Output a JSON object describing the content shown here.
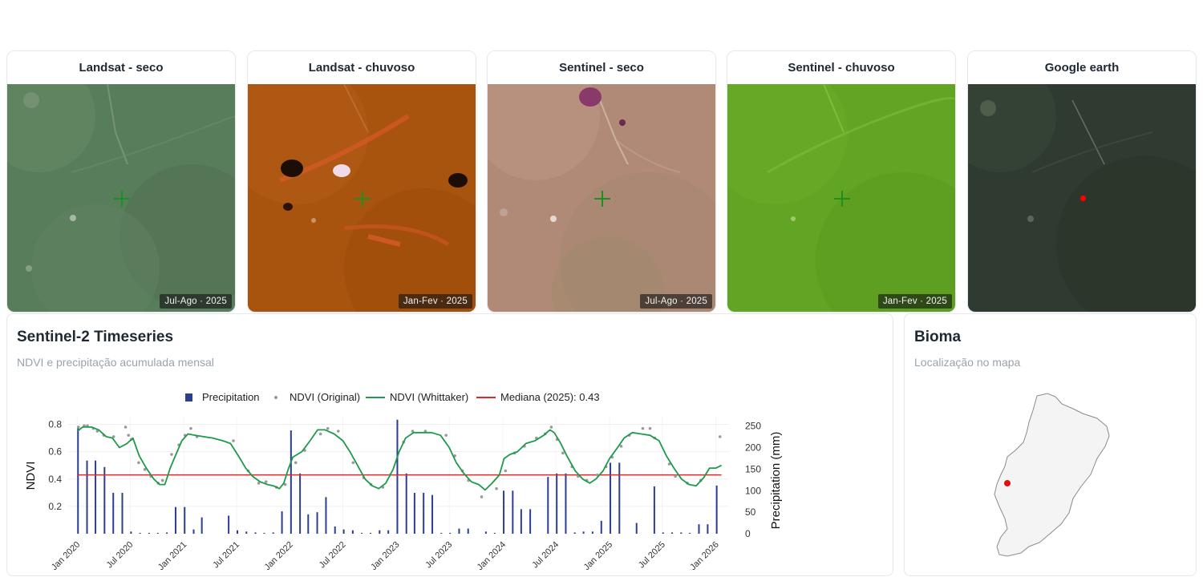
{
  "tiles": [
    {
      "title": "Landsat - seco",
      "badge": "Jul-Ago · 2025",
      "base": "#587d5a",
      "marker": "cross"
    },
    {
      "title": "Landsat - chuvoso",
      "badge": "Jan-Fev · 2025",
      "base": "#a8530e",
      "marker": "cross"
    },
    {
      "title": "Sentinel - seco",
      "badge": "Jul-Ago · 2025",
      "base": "#b08a76",
      "marker": "cross"
    },
    {
      "title": "Sentinel - chuvoso",
      "badge": "Jan-Fev · 2025",
      "base": "#62a424",
      "marker": "cross"
    },
    {
      "title": "Google earth",
      "badge": "",
      "base": "#2f3a30",
      "marker": "dot"
    }
  ],
  "timeseries": {
    "title": "Sentinel-2 Timeseries",
    "subtitle": "NDVI e precipitação acumulada mensal"
  },
  "bioma": {
    "title": "Bioma",
    "subtitle": "Localização no mapa"
  },
  "colors": {
    "precip": "#2c3e8f",
    "ndvi_original": "#9a9a9a",
    "ndvi_whittaker": "#1e9a4a",
    "median": "#e02626",
    "marker_cross": "#1f8f1f",
    "marker_dot": "#ff0000"
  },
  "chart_data": {
    "type": "line",
    "legend": [
      "Precipitation",
      "NDVI (Original)",
      "NDVI (Whittaker)",
      "Mediana (2025): 0.43"
    ],
    "legend_position": "top",
    "ylabel": "NDVI",
    "y2label": "Precipitation (mm)",
    "ylim": [
      0.0,
      0.85
    ],
    "y2lim": [
      0,
      270
    ],
    "yticks": [
      0.2,
      0.4,
      0.6,
      0.8
    ],
    "y2ticks": [
      0,
      50,
      100,
      150,
      200,
      250
    ],
    "xticks": [
      "Jan 2020",
      "Jul 2020",
      "Jan 2021",
      "Jul 2021",
      "Jan 2022",
      "Jul 2022",
      "Jan 2023",
      "Jul 2023",
      "Jan 2024",
      "Jul 2024",
      "Jan 2025",
      "Jul 2025",
      "Jan 2026"
    ],
    "median": 0.43,
    "whittaker": {
      "x": [
        "2020-01-01",
        "2020-01-20",
        "2020-02-20",
        "2020-03-15",
        "2020-04-10",
        "2020-05-01",
        "2020-05-25",
        "2020-06-20",
        "2020-07-10",
        "2020-08-01",
        "2020-08-25",
        "2020-09-20",
        "2020-10-10",
        "2020-10-28",
        "2020-11-15",
        "2020-12-05",
        "2020-12-25",
        "2021-01-15",
        "2021-02-10",
        "2021-03-10",
        "2021-04-10",
        "2021-05-15",
        "2021-06-10",
        "2021-07-10",
        "2021-08-01",
        "2021-08-25",
        "2021-09-20",
        "2021-10-15",
        "2021-11-05",
        "2021-11-25",
        "2021-12-10",
        "2021-12-25",
        "2022-01-10",
        "2022-02-10",
        "2022-03-10",
        "2022-04-05",
        "2022-05-01",
        "2022-06-01",
        "2022-07-01",
        "2022-07-25",
        "2022-08-20",
        "2022-09-15",
        "2022-10-10",
        "2022-11-01",
        "2022-11-25",
        "2022-12-20",
        "2023-01-10",
        "2023-02-01",
        "2023-03-01",
        "2023-04-01",
        "2023-05-01",
        "2023-06-01",
        "2023-07-01",
        "2023-07-25",
        "2023-08-20",
        "2023-09-15",
        "2023-10-10",
        "2023-11-01",
        "2023-11-25",
        "2023-12-20",
        "2024-01-05",
        "2024-01-25",
        "2024-02-20",
        "2024-03-20",
        "2024-04-20",
        "2024-05-20",
        "2024-06-10",
        "2024-06-25",
        "2024-07-15",
        "2024-08-10",
        "2024-09-05",
        "2024-10-01",
        "2024-10-25",
        "2024-11-15",
        "2024-12-10",
        "2025-01-01",
        "2025-01-25",
        "2025-02-20",
        "2025-03-20",
        "2025-04-20",
        "2025-05-20",
        "2025-06-20",
        "2025-07-15",
        "2025-08-10",
        "2025-09-05",
        "2025-10-01",
        "2025-10-25",
        "2025-11-20",
        "2025-12-10",
        "2026-01-01",
        "2026-01-20"
      ],
      "y": [
        0.75,
        0.78,
        0.78,
        0.76,
        0.71,
        0.7,
        0.63,
        0.66,
        0.7,
        0.57,
        0.48,
        0.4,
        0.36,
        0.36,
        0.48,
        0.58,
        0.68,
        0.73,
        0.72,
        0.71,
        0.7,
        0.68,
        0.66,
        0.56,
        0.48,
        0.42,
        0.38,
        0.36,
        0.35,
        0.33,
        0.37,
        0.47,
        0.56,
        0.6,
        0.68,
        0.76,
        0.76,
        0.73,
        0.68,
        0.6,
        0.5,
        0.4,
        0.35,
        0.33,
        0.37,
        0.47,
        0.6,
        0.7,
        0.74,
        0.74,
        0.74,
        0.72,
        0.63,
        0.52,
        0.44,
        0.38,
        0.36,
        0.32,
        0.37,
        0.43,
        0.55,
        0.58,
        0.6,
        0.66,
        0.68,
        0.72,
        0.76,
        0.74,
        0.67,
        0.56,
        0.46,
        0.4,
        0.37,
        0.4,
        0.46,
        0.55,
        0.62,
        0.7,
        0.74,
        0.73,
        0.72,
        0.68,
        0.57,
        0.48,
        0.4,
        0.36,
        0.35,
        0.41,
        0.48,
        0.48,
        0.5
      ]
    },
    "original": {
      "x": [
        "2020-01-05",
        "2020-01-25",
        "2020-02-05",
        "2020-02-25",
        "2020-03-10",
        "2020-04-01",
        "2020-05-05",
        "2020-06-15",
        "2020-06-25",
        "2020-07-05",
        "2020-07-30",
        "2020-08-20",
        "2020-09-10",
        "2020-10-05",
        "2020-10-20",
        "2020-11-20",
        "2020-12-15",
        "2021-01-05",
        "2021-01-25",
        "2021-02-15",
        "2021-06-20",
        "2021-08-10",
        "2021-09-15",
        "2021-10-10",
        "2021-11-15",
        "2021-12-15",
        "2022-01-20",
        "2022-02-20",
        "2022-04-15",
        "2022-05-10",
        "2022-06-15",
        "2022-08-05",
        "2022-09-10",
        "2022-10-05",
        "2022-11-15",
        "2022-12-10",
        "2023-01-25",
        "2023-02-25",
        "2023-04-10",
        "2023-06-20",
        "2023-07-20",
        "2023-08-15",
        "2023-09-05",
        "2023-10-20",
        "2023-12-10",
        "2024-01-10",
        "2024-02-10",
        "2024-03-15",
        "2024-04-25",
        "2024-05-25",
        "2024-06-15",
        "2024-07-05",
        "2024-07-25",
        "2024-08-25",
        "2024-09-15",
        "2024-10-15",
        "2024-11-20",
        "2024-12-20",
        "2025-01-10",
        "2025-02-10",
        "2025-03-10",
        "2025-04-25",
        "2025-05-20",
        "2025-06-05",
        "2025-07-25",
        "2025-08-15",
        "2025-09-25",
        "2025-11-10",
        "2026-01-15"
      ],
      "y": [
        0.78,
        0.79,
        0.79,
        0.77,
        0.75,
        0.72,
        0.71,
        0.78,
        0.72,
        0.69,
        0.52,
        0.47,
        0.42,
        0.37,
        0.39,
        0.58,
        0.65,
        0.72,
        0.77,
        0.71,
        0.68,
        0.46,
        0.37,
        0.38,
        0.34,
        0.36,
        0.52,
        0.61,
        0.73,
        0.77,
        0.75,
        0.52,
        0.41,
        0.36,
        0.34,
        0.43,
        0.67,
        0.75,
        0.75,
        0.72,
        0.57,
        0.46,
        0.39,
        0.27,
        0.33,
        0.46,
        0.59,
        0.64,
        0.7,
        0.73,
        0.78,
        0.69,
        0.59,
        0.49,
        0.42,
        0.39,
        0.43,
        0.49,
        0.56,
        0.64,
        0.72,
        0.77,
        0.77,
        0.7,
        0.51,
        0.42,
        0.37,
        0.39,
        0.71
      ]
    },
    "precipitation": {
      "x": [
        "2020-01",
        "2020-02",
        "2020-03",
        "2020-04",
        "2020-05",
        "2020-06",
        "2020-07",
        "2020-08",
        "2020-09",
        "2020-10",
        "2020-11",
        "2020-12",
        "2021-01",
        "2021-02",
        "2021-03",
        "2021-04",
        "2021-05",
        "2021-06",
        "2021-07",
        "2021-08",
        "2021-09",
        "2021-10",
        "2021-11",
        "2021-12",
        "2022-01",
        "2022-02",
        "2022-03",
        "2022-04",
        "2022-05",
        "2022-06",
        "2022-07",
        "2022-08",
        "2022-09",
        "2022-10",
        "2022-11",
        "2022-12",
        "2023-01",
        "2023-02",
        "2023-03",
        "2023-04",
        "2023-05",
        "2023-06",
        "2023-07",
        "2023-08",
        "2023-09",
        "2023-10",
        "2023-11",
        "2023-12",
        "2024-01",
        "2024-02",
        "2024-03",
        "2024-04",
        "2024-05",
        "2024-06",
        "2024-07",
        "2024-08",
        "2024-09",
        "2024-10",
        "2024-11",
        "2024-12",
        "2025-01",
        "2025-02",
        "2025-03",
        "2025-04",
        "2025-05",
        "2025-06",
        "2025-07",
        "2025-08",
        "2025-09",
        "2025-10",
        "2025-11",
        "2025-12",
        "2026-01"
      ],
      "y": [
        245,
        170,
        170,
        155,
        95,
        95,
        5,
        2,
        2,
        2,
        3,
        62,
        62,
        10,
        38,
        0,
        0,
        42,
        8,
        5,
        3,
        2,
        3,
        52,
        240,
        140,
        45,
        50,
        85,
        17,
        10,
        8,
        2,
        2,
        8,
        8,
        265,
        140,
        95,
        95,
        90,
        2,
        2,
        12,
        12,
        0,
        5,
        2,
        100,
        100,
        57,
        57,
        0,
        132,
        140,
        140,
        3,
        5,
        5,
        30,
        165,
        165,
        0,
        25,
        0,
        110,
        3,
        3,
        3,
        2,
        22,
        22,
        112
      ]
    }
  }
}
